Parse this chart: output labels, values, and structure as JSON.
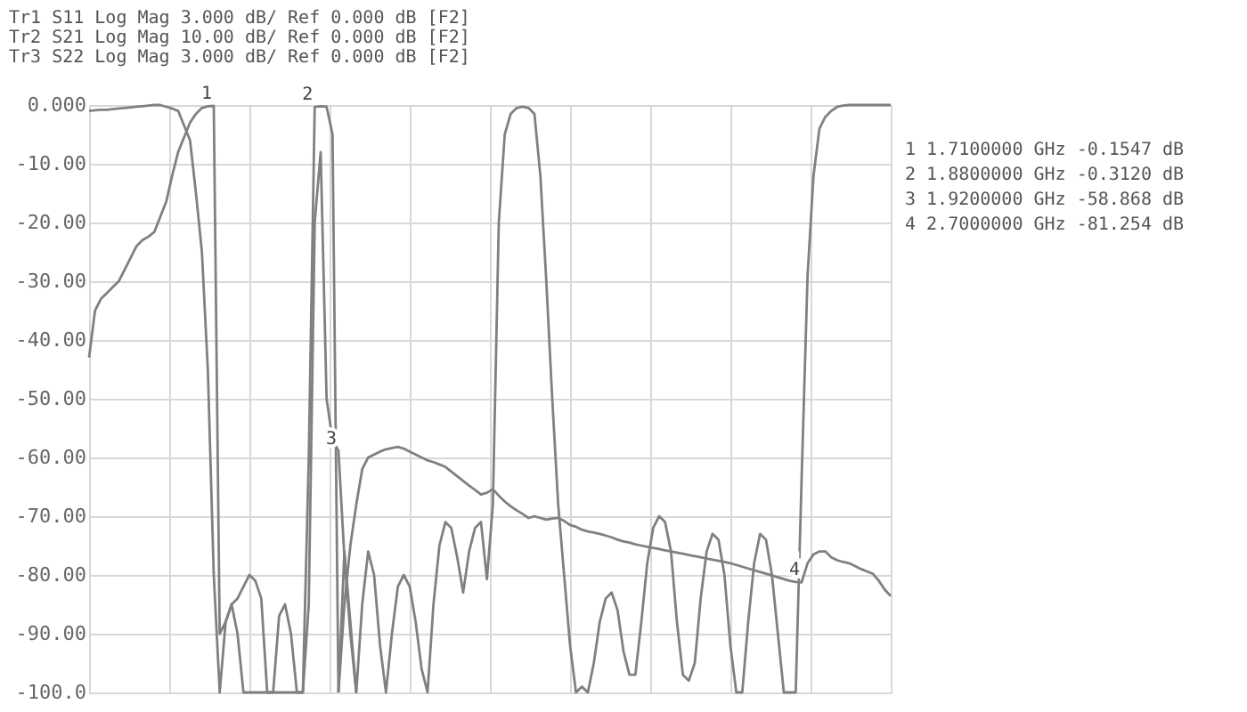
{
  "chart_data": {
    "type": "line",
    "annotations": [
      "Tr1 S11 Log Mag 3.000 dB/ Ref 0.000 dB [F2]",
      "Tr2 S21 Log Mag 10.00 dB/ Ref 0.000 dB [F2]",
      "Tr3 S22 Log Mag 3.000 dB/ Ref 0.000 dB [F2]",
      "1  1.7100000 GHz  -0.1547 dB",
      "2  1.8800000 GHz  -0.3120 dB",
      "3  1.9200000 GHz  -58.868 dB",
      "4  2.7000000 GHz  -81.254 dB",
      {
        "text": "1",
        "y": -0.1547
      },
      {
        "text": "2",
        "y": -0.312
      },
      {
        "text": "3",
        "y": -58.868
      },
      {
        "text": "4",
        "y": -81.254
      }
    ],
    "categories": [
      null,
      null,
      null,
      null,
      null,
      null,
      null,
      null,
      null,
      null,
      null,
      null,
      null,
      null,
      null,
      null,
      null,
      null,
      null,
      null,
      null,
      null,
      null,
      null,
      null,
      null,
      null,
      null,
      null,
      null,
      null,
      null,
      null,
      null,
      null,
      null,
      null,
      null,
      null,
      null,
      null,
      null,
      null,
      null,
      null,
      null,
      null,
      null,
      null,
      null,
      null,
      null,
      null,
      null,
      null,
      null,
      null,
      null,
      null,
      null,
      null,
      null,
      null,
      null,
      null,
      null,
      null,
      null,
      null,
      null,
      null,
      null,
      null,
      null,
      null,
      null,
      null,
      null,
      null,
      null,
      null,
      null,
      null,
      null,
      null,
      null,
      null,
      null,
      null,
      null,
      null,
      null,
      null,
      null,
      null,
      null,
      null,
      null,
      null,
      null,
      null,
      null,
      null,
      null,
      null,
      null,
      null,
      null,
      null,
      null,
      null,
      null,
      null,
      null,
      null,
      null,
      null,
      null,
      null,
      null,
      null,
      null,
      null,
      null,
      null,
      null,
      null,
      null,
      null,
      null,
      null,
      null,
      null,
      null,
      null,
      null
    ],
    "series": [
      {
        "color": "#808080",
        "values": [
          -1,
          -0.9,
          -0.8,
          -0.8,
          -0.7,
          -0.6,
          -0.5,
          -0.4,
          -0.3,
          -0.2,
          -0.1,
          0,
          0,
          -0.3,
          -0.6,
          -1,
          -3.5,
          -6,
          -15,
          -25,
          -45,
          -80,
          -100,
          -88,
          -85,
          -84,
          -82,
          -80,
          -81,
          -84,
          -100,
          -100,
          -87,
          -85,
          -90,
          -100,
          -100,
          -85,
          -20,
          -8,
          -50,
          -57,
          -58.868,
          -77,
          -90,
          -100,
          null,
          null,
          null,
          null,
          null,
          null,
          null,
          null,
          null,
          null,
          null,
          null,
          null,
          null,
          null,
          null,
          null,
          null,
          null,
          null,
          null,
          null,
          null,
          null,
          null,
          null,
          null,
          null,
          null,
          null,
          null,
          null,
          null,
          null,
          null,
          null,
          null,
          null,
          null,
          null,
          null,
          null,
          null,
          null,
          null,
          null,
          null,
          null,
          null,
          null,
          null,
          null,
          null,
          null,
          null,
          null,
          null,
          null,
          null,
          null,
          null,
          null,
          null,
          null,
          null,
          null,
          null,
          null,
          null,
          null,
          null,
          null,
          null,
          null,
          null,
          null,
          null,
          null,
          null,
          null,
          null,
          null,
          null,
          null,
          null,
          null,
          null,
          null,
          null,
          null
        ]
      },
      {
        "color": "#808080",
        "values": [
          -43,
          -35,
          -33,
          -32,
          -31,
          -30,
          -28,
          -26,
          -24,
          -23,
          -22.4,
          -21.6,
          -19,
          -16.4,
          -12,
          -8,
          -5.5,
          -3,
          -1.5,
          -0.5,
          -0.2,
          -0.1547,
          -90,
          -88,
          -85,
          -90,
          -100,
          -100,
          -100,
          -100,
          -100,
          -100,
          -100,
          -100,
          -100,
          -100,
          -100,
          -60,
          -0.312,
          -0.2,
          -0.3,
          -5,
          -100,
          null,
          null,
          null,
          null,
          null,
          null,
          null,
          null,
          null,
          null,
          null,
          null,
          null,
          null,
          null,
          null,
          null,
          null,
          null,
          null,
          null,
          null,
          null,
          null,
          null,
          null,
          null,
          null,
          null,
          null,
          null,
          null,
          null,
          null,
          null,
          null,
          null,
          null,
          null,
          null,
          null,
          null,
          null,
          null,
          null,
          null,
          null,
          null,
          null,
          null,
          null,
          null,
          null,
          null,
          null,
          null,
          null,
          null,
          null,
          null,
          null,
          null,
          null,
          null,
          null,
          null,
          null,
          null,
          null,
          null,
          null,
          null,
          null,
          null,
          null,
          null,
          null,
          null,
          null,
          null,
          null,
          null,
          null,
          null,
          null,
          null,
          null,
          null,
          null,
          null,
          null,
          null,
          null
        ]
      },
      {
        "color": "#808080",
        "values": [
          null,
          null,
          null,
          null,
          null,
          null,
          null,
          null,
          null,
          null,
          null,
          null,
          null,
          null,
          null,
          null,
          null,
          null,
          null,
          null,
          null,
          null,
          null,
          null,
          null,
          null,
          null,
          null,
          null,
          null,
          null,
          null,
          null,
          null,
          null,
          null,
          null,
          null,
          null,
          null,
          null,
          null,
          -100,
          -85,
          -75,
          -68,
          -62,
          -60,
          -59.5,
          -59,
          -58.6,
          -58.4,
          -58.2,
          -58.5,
          -59,
          -59.5,
          -60,
          -60.5,
          -60.8,
          -61.2,
          -61.6,
          -62.4,
          -63.2,
          -64,
          -64.8,
          -65.5,
          -66.3,
          -66,
          -65.4,
          -66.5,
          -67.5,
          -68.3,
          -69,
          -69.6,
          -70.3,
          -70,
          -70.3,
          -70.6,
          -70.4,
          -70.3,
          -70.8,
          -71.5,
          -71.8,
          -72.3,
          -72.6,
          -72.8,
          -73,
          -73.3,
          -73.6,
          -74,
          -74.3,
          -74.5,
          -74.8,
          -75,
          -75.2,
          -75.4,
          -75.6,
          -75.8,
          -76,
          -76.2,
          -76.4,
          -76.6,
          -76.8,
          -77,
          -77.2,
          -77.4,
          -77.6,
          -77.8,
          -78,
          -78.3,
          -78.6,
          -78.9,
          -79.2,
          -79.5,
          -79.8,
          -80.1,
          -80.4,
          -80.7,
          -81,
          -81.2,
          -81.254,
          -78,
          -76.5,
          -76,
          -76,
          -77,
          -77.5,
          -77.8,
          -78,
          -78.5,
          -79,
          -79.4,
          -79.8,
          -81,
          -82.5,
          -83.6
        ]
      },
      {
        "color": "#808080",
        "values": [
          null,
          null,
          null,
          null,
          null,
          null,
          null,
          null,
          null,
          null,
          null,
          null,
          null,
          null,
          null,
          null,
          null,
          null,
          null,
          null,
          null,
          null,
          null,
          null,
          null,
          null,
          null,
          null,
          null,
          null,
          null,
          null,
          null,
          null,
          null,
          null,
          null,
          null,
          null,
          null,
          null,
          null,
          -100,
          -76,
          -88,
          -100,
          -85,
          -76,
          -80,
          -92,
          -100,
          -90,
          -82,
          -80,
          -82,
          -88,
          -96,
          -100,
          -85,
          -75,
          -71,
          -72,
          -77,
          -83,
          -76,
          -72,
          -71,
          -80.7,
          -68,
          -20,
          -5,
          -1.5,
          -0.5,
          -0.3,
          -0.5,
          -1.5,
          -12,
          -30,
          -50,
          -68,
          -80,
          -92,
          -100,
          -99,
          -100,
          -95,
          -88,
          -84,
          -83,
          -86,
          -93,
          -97,
          -97,
          -88,
          -78,
          -72,
          -70,
          -71,
          -76,
          -88,
          -97,
          -98,
          -95,
          -84,
          -76,
          -73,
          -74,
          -80,
          -92,
          -100,
          -100,
          -88,
          -78,
          -73,
          -74,
          -80,
          -90,
          -100,
          -100,
          -100,
          -63.5,
          -29,
          -12,
          -4,
          -2,
          -1,
          -0.3,
          -0.1,
          0,
          0,
          0,
          0,
          0,
          0,
          0,
          0
        ]
      }
    ],
    "ylim": [
      -100,
      0
    ],
    "yticks": [
      {
        "value": 0,
        "label": "0.000"
      },
      {
        "value": -10,
        "label": "-10.00"
      },
      {
        "value": -20,
        "label": "-20.00"
      },
      {
        "value": -30,
        "label": "-30.00"
      },
      {
        "value": -40,
        "label": "-40.00"
      },
      {
        "value": -50,
        "label": "-50.00"
      },
      {
        "value": -60,
        "label": "-60.00"
      },
      {
        "value": -70,
        "label": "-70.00"
      },
      {
        "value": -80,
        "label": "-80.00"
      },
      {
        "value": -90,
        "label": "-90.00"
      },
      {
        "value": -100,
        "label": "-100.0"
      }
    ],
    "tick_labels": "y",
    "grid": true,
    "marker": "none",
    "line_style": "solid"
  }
}
